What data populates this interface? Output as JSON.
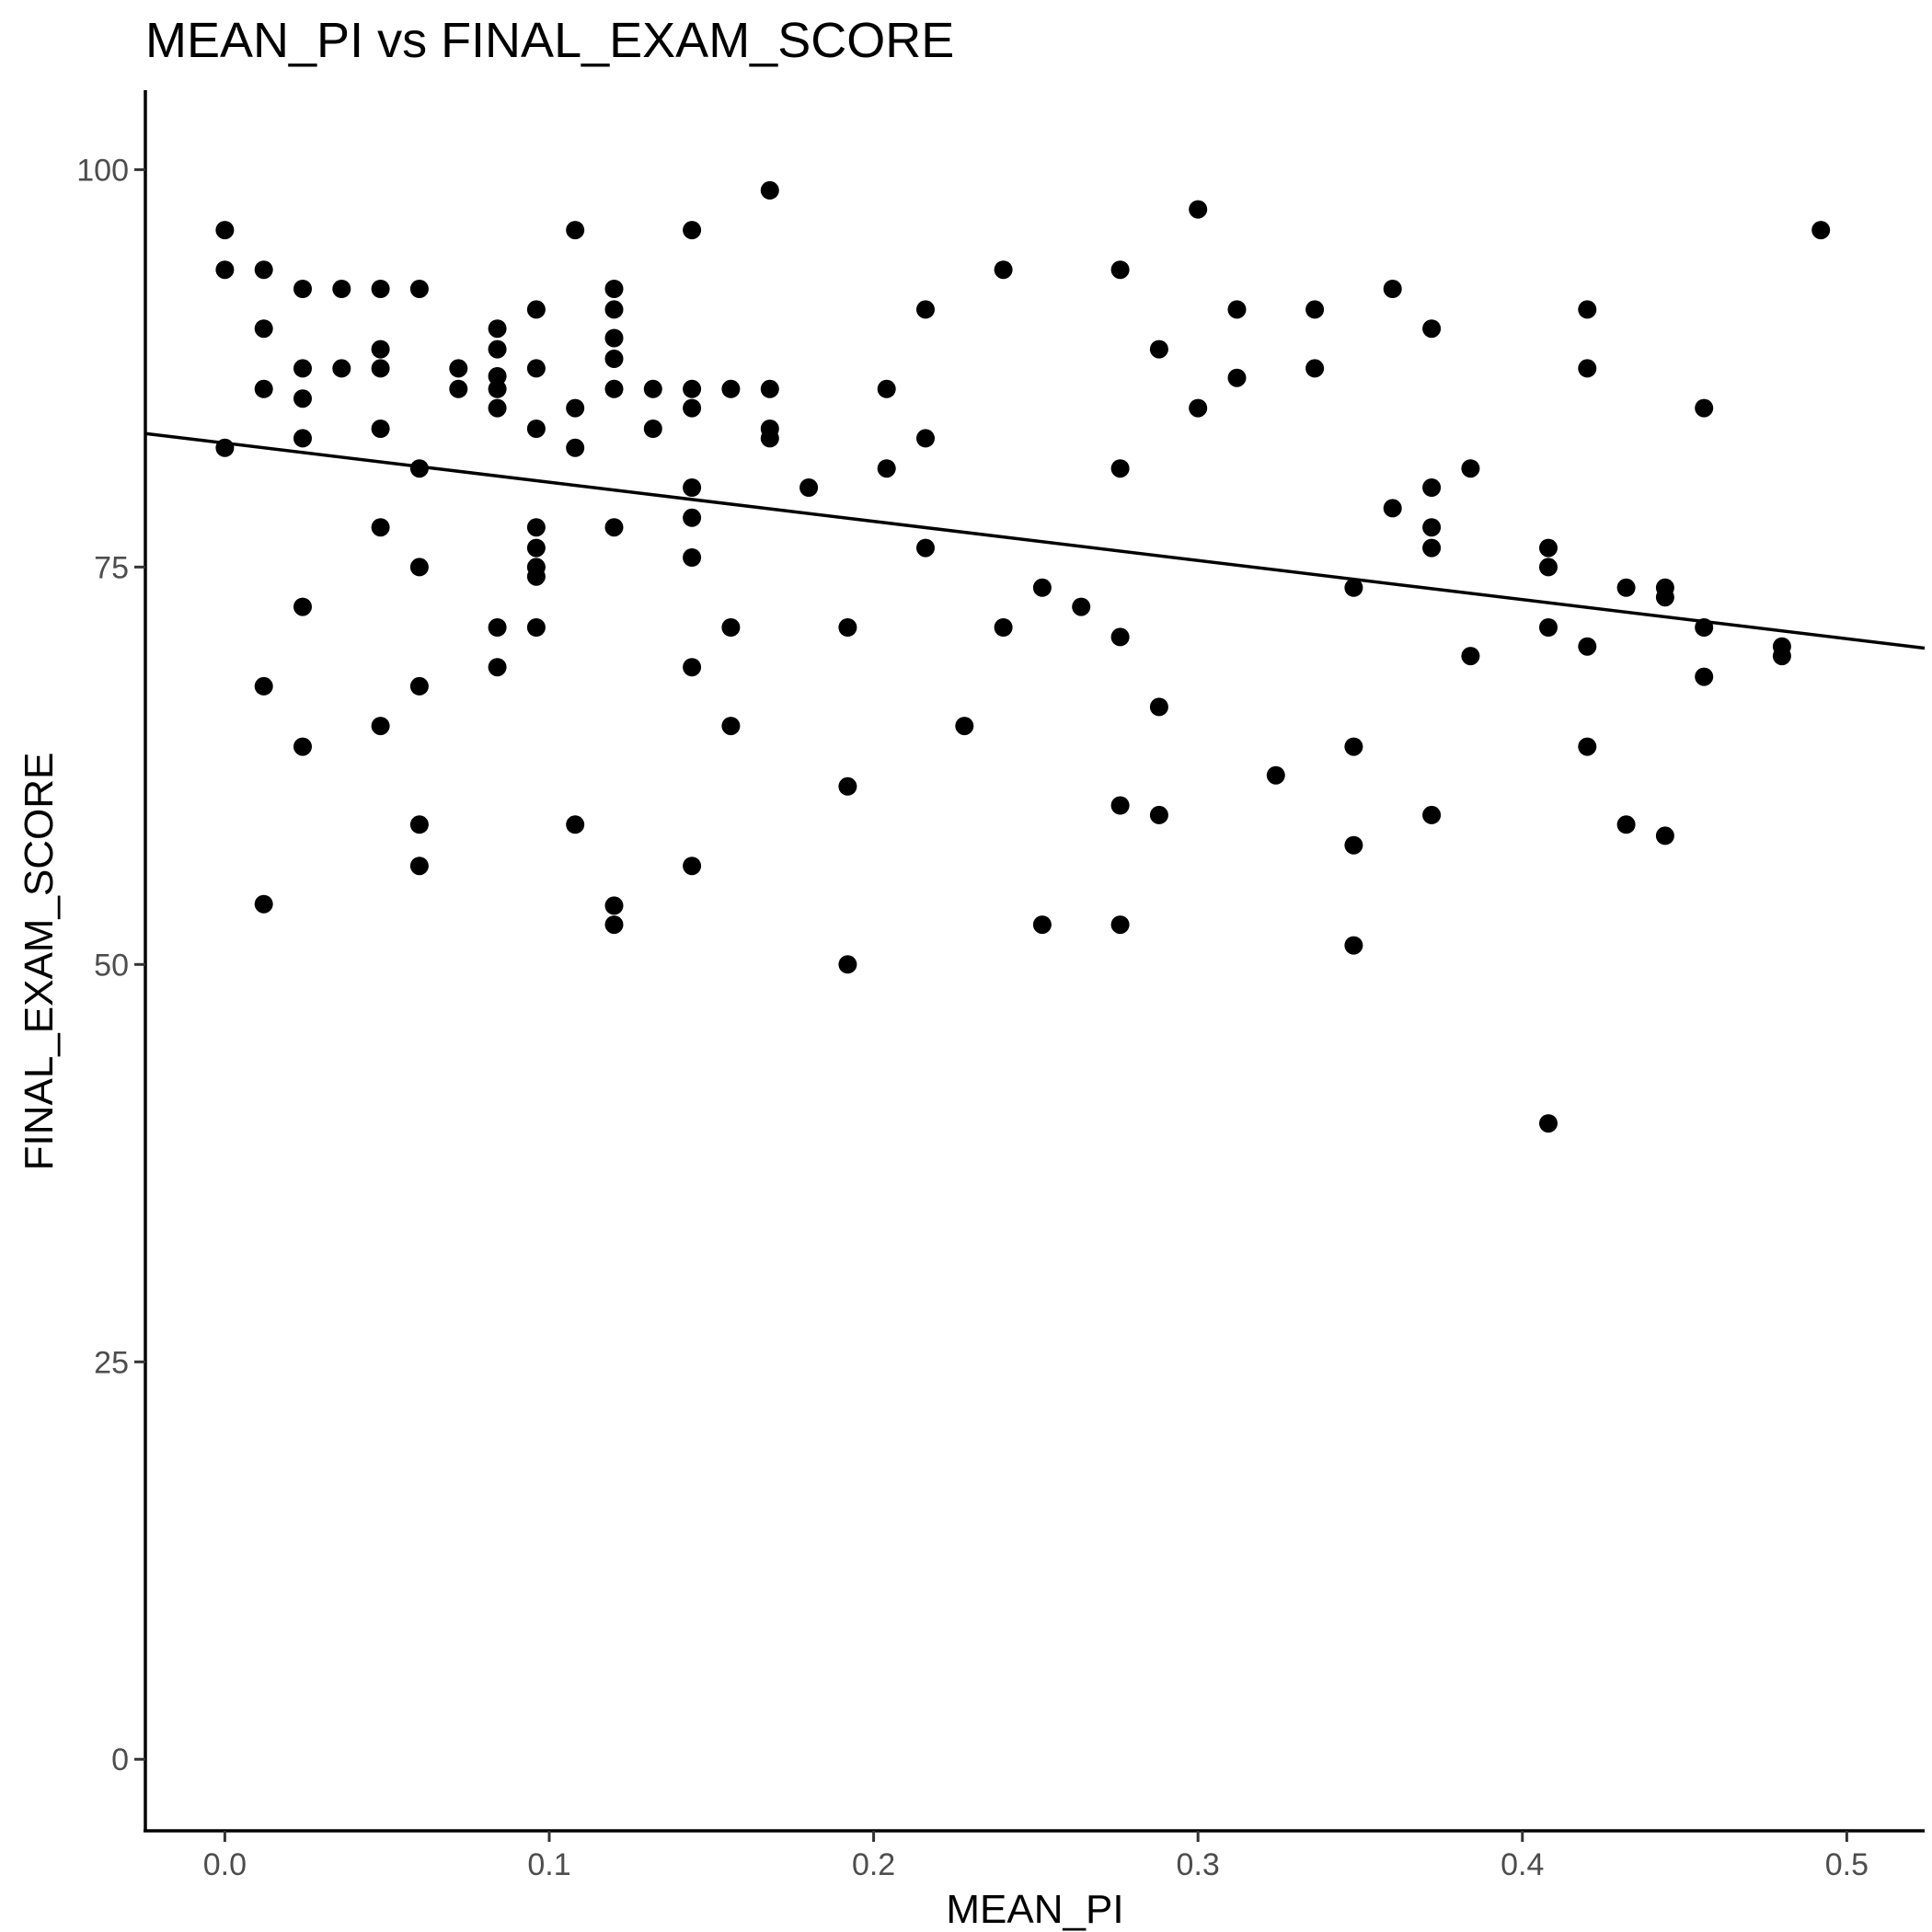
{
  "chart_data": {
    "type": "scatter",
    "title": "MEAN_PI vs FINAL_EXAM_SCORE",
    "xlabel": "MEAN_PI",
    "ylabel": "FINAL_EXAM_SCORE",
    "xlim": [
      -0.0245,
      0.524
    ],
    "ylim": [
      -4.5,
      105
    ],
    "x_ticks": [
      0.0,
      0.1,
      0.2,
      0.3,
      0.4,
      0.5
    ],
    "x_tick_labels": [
      "0.0",
      "0.1",
      "0.2",
      "0.3",
      "0.4",
      "0.5"
    ],
    "y_ticks": [
      0,
      25,
      50,
      75,
      100
    ],
    "y_tick_labels": [
      "0",
      "25",
      "50",
      "75",
      "100"
    ],
    "grid": false,
    "legend": "none",
    "trend_line": {
      "x": [
        -0.0245,
        0.524
      ],
      "y": [
        83.4,
        69.9
      ]
    },
    "points": [
      [
        0.0,
        96.2
      ],
      [
        0.0,
        93.7
      ],
      [
        0.0,
        82.5
      ],
      [
        0.012,
        93.7
      ],
      [
        0.012,
        90.0
      ],
      [
        0.012,
        86.2
      ],
      [
        0.012,
        67.5
      ],
      [
        0.012,
        53.8
      ],
      [
        0.024,
        92.5
      ],
      [
        0.024,
        87.5
      ],
      [
        0.024,
        85.6
      ],
      [
        0.024,
        83.1
      ],
      [
        0.024,
        72.5
      ],
      [
        0.024,
        63.7
      ],
      [
        0.036,
        92.5
      ],
      [
        0.036,
        87.5
      ],
      [
        0.048,
        92.5
      ],
      [
        0.048,
        88.7
      ],
      [
        0.048,
        87.5
      ],
      [
        0.048,
        83.7
      ],
      [
        0.048,
        77.5
      ],
      [
        0.048,
        65.0
      ],
      [
        0.06,
        92.5
      ],
      [
        0.06,
        81.2
      ],
      [
        0.06,
        75.0
      ],
      [
        0.06,
        67.5
      ],
      [
        0.06,
        58.8
      ],
      [
        0.06,
        56.2
      ],
      [
        0.072,
        87.5
      ],
      [
        0.072,
        86.2
      ],
      [
        0.084,
        90.0
      ],
      [
        0.084,
        88.7
      ],
      [
        0.084,
        87.0
      ],
      [
        0.084,
        86.2
      ],
      [
        0.084,
        85.0
      ],
      [
        0.084,
        71.2
      ],
      [
        0.084,
        68.7
      ],
      [
        0.096,
        91.2
      ],
      [
        0.096,
        87.5
      ],
      [
        0.096,
        83.7
      ],
      [
        0.096,
        77.5
      ],
      [
        0.096,
        76.2
      ],
      [
        0.096,
        75.0
      ],
      [
        0.096,
        74.4
      ],
      [
        0.096,
        71.2
      ],
      [
        0.108,
        96.2
      ],
      [
        0.108,
        85.0
      ],
      [
        0.108,
        82.5
      ],
      [
        0.108,
        58.8
      ],
      [
        0.12,
        92.5
      ],
      [
        0.12,
        91.2
      ],
      [
        0.12,
        89.4
      ],
      [
        0.12,
        88.1
      ],
      [
        0.12,
        86.2
      ],
      [
        0.12,
        77.5
      ],
      [
        0.12,
        53.7
      ],
      [
        0.12,
        52.5
      ],
      [
        0.132,
        86.2
      ],
      [
        0.132,
        83.7
      ],
      [
        0.144,
        96.2
      ],
      [
        0.144,
        86.2
      ],
      [
        0.144,
        85.0
      ],
      [
        0.144,
        80.0
      ],
      [
        0.144,
        78.1
      ],
      [
        0.144,
        75.6
      ],
      [
        0.144,
        68.7
      ],
      [
        0.144,
        56.2
      ],
      [
        0.156,
        86.2
      ],
      [
        0.156,
        71.2
      ],
      [
        0.156,
        65.0
      ],
      [
        0.168,
        98.7
      ],
      [
        0.168,
        86.2
      ],
      [
        0.168,
        83.7
      ],
      [
        0.168,
        83.1
      ],
      [
        0.18,
        80.0
      ],
      [
        0.192,
        71.2
      ],
      [
        0.192,
        61.2
      ],
      [
        0.192,
        50.0
      ],
      [
        0.204,
        86.2
      ],
      [
        0.204,
        81.2
      ],
      [
        0.216,
        91.2
      ],
      [
        0.216,
        83.1
      ],
      [
        0.216,
        76.2
      ],
      [
        0.228,
        65.0
      ],
      [
        0.24,
        93.7
      ],
      [
        0.24,
        71.2
      ],
      [
        0.252,
        73.7
      ],
      [
        0.252,
        52.5
      ],
      [
        0.264,
        72.5
      ],
      [
        0.276,
        93.7
      ],
      [
        0.276,
        81.2
      ],
      [
        0.276,
        70.6
      ],
      [
        0.276,
        60.0
      ],
      [
        0.276,
        52.5
      ],
      [
        0.288,
        88.7
      ],
      [
        0.288,
        66.2
      ],
      [
        0.288,
        59.4
      ],
      [
        0.3,
        97.5
      ],
      [
        0.3,
        85.0
      ],
      [
        0.312,
        91.2
      ],
      [
        0.312,
        86.9
      ],
      [
        0.324,
        61.9
      ],
      [
        0.336,
        91.2
      ],
      [
        0.336,
        87.5
      ],
      [
        0.348,
        73.7
      ],
      [
        0.348,
        63.7
      ],
      [
        0.348,
        57.5
      ],
      [
        0.348,
        51.2
      ],
      [
        0.36,
        92.5
      ],
      [
        0.36,
        78.7
      ],
      [
        0.372,
        90.0
      ],
      [
        0.372,
        80.0
      ],
      [
        0.372,
        77.5
      ],
      [
        0.372,
        76.2
      ],
      [
        0.372,
        59.4
      ],
      [
        0.384,
        81.2
      ],
      [
        0.384,
        69.4
      ],
      [
        0.408,
        76.2
      ],
      [
        0.408,
        75.0
      ],
      [
        0.408,
        71.2
      ],
      [
        0.408,
        40.0
      ],
      [
        0.42,
        91.2
      ],
      [
        0.42,
        87.5
      ],
      [
        0.42,
        70.0
      ],
      [
        0.42,
        63.7
      ],
      [
        0.432,
        73.7
      ],
      [
        0.432,
        58.8
      ],
      [
        0.444,
        73.7
      ],
      [
        0.444,
        73.1
      ],
      [
        0.444,
        58.1
      ],
      [
        0.456,
        85.0
      ],
      [
        0.456,
        71.2
      ],
      [
        0.456,
        68.1
      ],
      [
        0.48,
        70.0
      ],
      [
        0.48,
        69.4
      ],
      [
        0.492,
        96.2
      ]
    ]
  }
}
